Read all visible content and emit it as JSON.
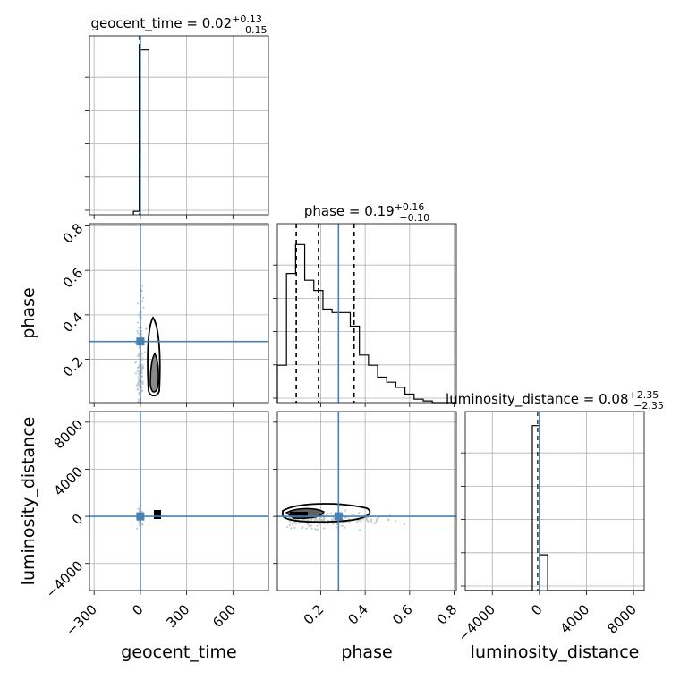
{
  "chart_data": {
    "type": "corner",
    "parameters": [
      "geocent_time",
      "phase",
      "luminosity_distance"
    ],
    "truth": {
      "geocent_time": 0,
      "phase": 0.28,
      "luminosity_distance": 0
    },
    "truth_color": "#4682b4",
    "grid": true,
    "titles": [
      {
        "param": "geocent_time",
        "prefix": "geocent_time = ",
        "median": "0.02",
        "plus": "+0.13",
        "minus": "−0.15"
      },
      {
        "param": "phase",
        "prefix": "phase = ",
        "median": "0.19",
        "plus": "+0.16",
        "minus": "−0.10"
      },
      {
        "param": "luminosity_distance",
        "prefix": "luminosity_distance = ",
        "median": "0.08",
        "plus": "+2.35",
        "minus": "−2.35"
      }
    ],
    "ranges": {
      "geocent_time": [
        -330,
        830
      ],
      "phase": [
        0.005,
        0.81
      ],
      "luminosity_distance": [
        -6300,
        8900
      ]
    },
    "ticks": {
      "geocent_time": {
        "values": [
          -300,
          0,
          300,
          600
        ],
        "labels": [
          "−300",
          "0",
          "300",
          "600"
        ]
      },
      "phase_x": {
        "values": [
          0.2,
          0.4,
          0.6,
          0.8
        ],
        "labels": [
          "0.2",
          "0.4",
          "0.6",
          "0.8"
        ]
      },
      "phase_y": {
        "values": [
          0.2,
          0.4,
          0.6,
          0.8
        ],
        "labels": [
          "0.2",
          "0.4",
          "0.6",
          "0.8"
        ]
      },
      "luminosity_distance": {
        "values": [
          -4000,
          0,
          4000,
          8000
        ],
        "labels": [
          "−4000",
          "0",
          "4000",
          "8000"
        ]
      }
    },
    "quantiles": {
      "phase": [
        0.09,
        0.19,
        0.35
      ]
    },
    "hist_geocent_time": {
      "edges": [
        -45,
        -7,
        0,
        55
      ],
      "counts": [
        0.02,
        1.0,
        0.97
      ]
    },
    "hist_phase": {
      "edges": [
        0.005,
        0.046,
        0.087,
        0.128,
        0.169,
        0.21,
        0.251,
        0.292,
        0.333,
        0.374,
        0.415,
        0.456,
        0.497,
        0.538,
        0.579,
        0.62,
        0.661,
        0.702,
        0.743,
        0.784,
        0.81
      ],
      "counts": [
        0.22,
        0.76,
        0.93,
        0.72,
        0.66,
        0.55,
        0.53,
        0.53,
        0.45,
        0.28,
        0.22,
        0.15,
        0.12,
        0.09,
        0.05,
        0.02,
        0.01,
        0.0,
        0.0,
        0.0
      ]
    },
    "hist_luminosity_distance": {
      "edges": [
        -6300,
        -600,
        0,
        700,
        8900
      ],
      "counts": [
        0.0,
        0.97,
        0.21,
        0.0
      ]
    },
    "xlabels": [
      "geocent_time",
      "phase",
      "luminosity_distance"
    ],
    "ylabels": [
      "phase",
      "luminosity_distance"
    ]
  }
}
